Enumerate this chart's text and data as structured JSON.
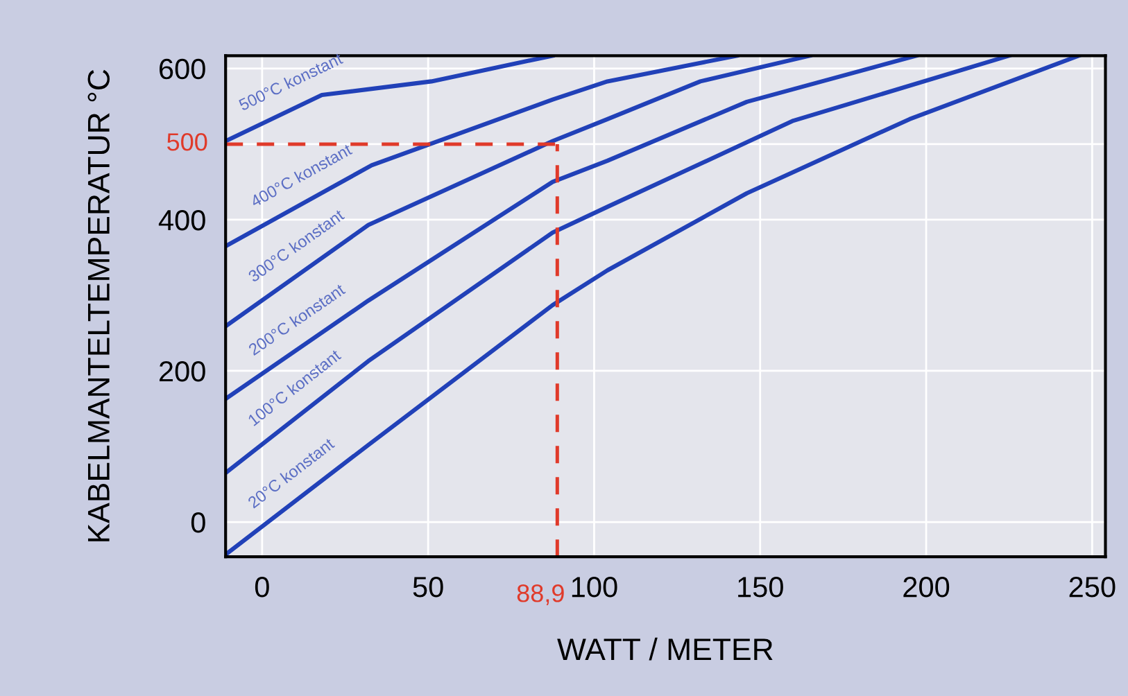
{
  "chart_data": {
    "type": "line",
    "xlabel": "WATT / METER",
    "ylabel": "KABELMANTELTEMPERATUR °C",
    "xlim": [
      -11,
      254
    ],
    "ylim": [
      -46,
      617
    ],
    "xticks": [
      0,
      50,
      100,
      150,
      200,
      250
    ],
    "yticks": [
      0,
      200,
      400,
      500,
      600
    ],
    "grid": true,
    "marker": "none",
    "line_style": "solid",
    "series": [
      {
        "name": "500°C konstant",
        "color": "#2141b8",
        "x": [
          -11,
          18,
          51,
          87.5
        ],
        "values": [
          504,
          565,
          583,
          617
        ]
      },
      {
        "name": "400°C konstant",
        "color": "#2141b8",
        "x": [
          -11,
          33,
          87.5,
          104,
          143
        ],
        "values": [
          365,
          472,
          559,
          583,
          617
        ]
      },
      {
        "name": "300°C konstant",
        "color": "#2141b8",
        "x": [
          -11,
          32,
          87.5,
          104,
          132,
          165
        ],
        "values": [
          259,
          393,
          504,
          533,
          583,
          617
        ]
      },
      {
        "name": "200°C konstant",
        "color": "#2141b8",
        "x": [
          -11,
          32,
          87.5,
          104,
          146,
          197
        ],
        "values": [
          163,
          293,
          450,
          478,
          556,
          617
        ]
      },
      {
        "name": "100°C konstant",
        "color": "#2141b8",
        "x": [
          -11,
          32,
          87.5,
          104,
          160,
          225
        ],
        "values": [
          65,
          213,
          383,
          417,
          531,
          617
        ]
      },
      {
        "name": "20°C konstant",
        "color": "#2141b8",
        "x": [
          -11,
          32,
          87.5,
          104,
          146,
          195,
          246
        ],
        "values": [
          -43,
          102,
          287,
          333,
          435,
          533,
          617
        ]
      }
    ],
    "ref_lines": [
      {
        "axis": "y",
        "value": 500,
        "label": "500",
        "color": "#e03a2a",
        "line_style": "dashed"
      },
      {
        "axis": "x",
        "value": 88.9,
        "label": "88,9",
        "color": "#e03a2a",
        "line_style": "dashed"
      }
    ]
  }
}
